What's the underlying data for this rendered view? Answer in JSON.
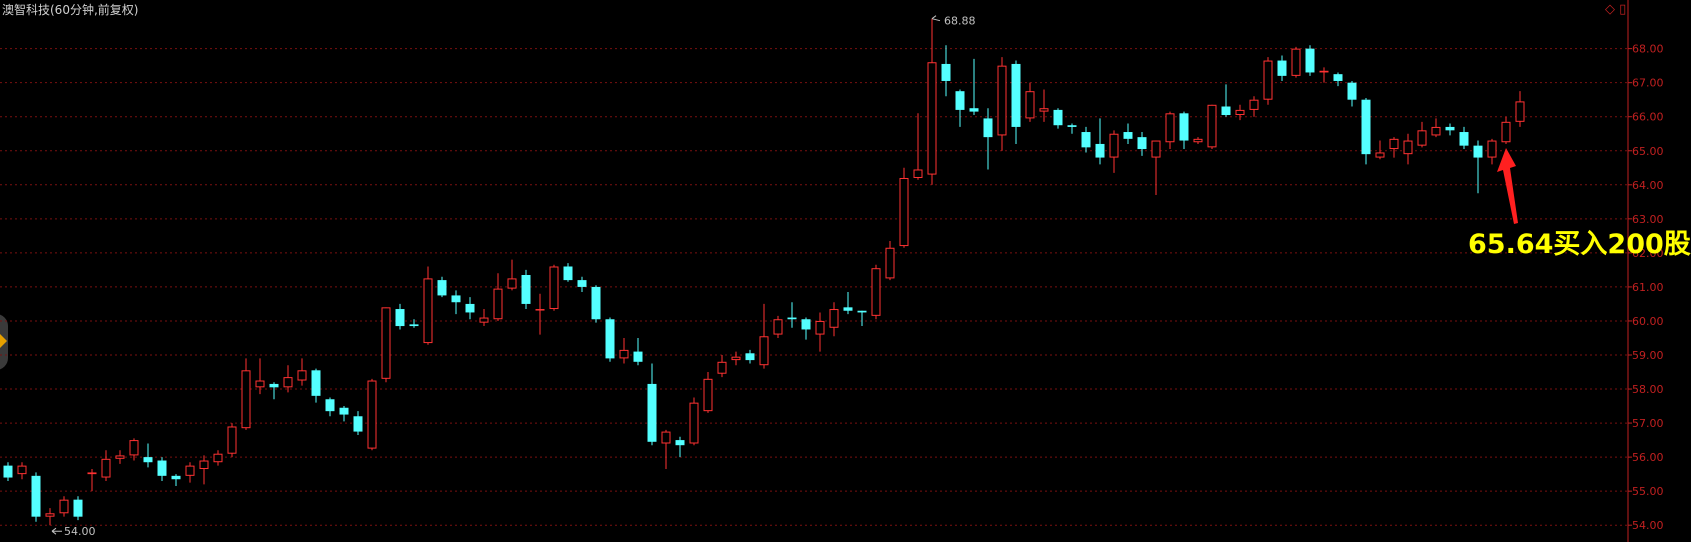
{
  "title": "澳智科技(60分钟,前复权)",
  "annotation": "65.64买入200股",
  "corner_icons": "◇ ▯",
  "colors": {
    "up": "#ff3232",
    "down": "#54ffff",
    "grid": "#7a1010",
    "axis_text": "#c02020",
    "arrow": "#ff2020",
    "annotation": "#ffff00"
  },
  "chart_data": {
    "type": "candlestick",
    "title": "澳智科技(60分钟,前复权)",
    "ylim": [
      53.8,
      68.9
    ],
    "y_ticks": [
      "54.00",
      "55.00",
      "56.00",
      "57.00",
      "58.00",
      "59.00",
      "60.00",
      "61.00",
      "62.00",
      "63.00",
      "64.00",
      "65.00",
      "66.00",
      "67.00",
      "68.00"
    ],
    "grid": true,
    "high_marker": "68.88",
    "low_marker": "54.00",
    "candles": [
      [
        55.75,
        55.4,
        55.85,
        55.3
      ],
      [
        55.5,
        55.75,
        55.85,
        55.35
      ],
      [
        55.45,
        54.25,
        55.55,
        54.1
      ],
      [
        54.25,
        54.35,
        54.5,
        54.0
      ],
      [
        54.35,
        54.75,
        54.85,
        54.25
      ],
      [
        54.75,
        54.25,
        54.85,
        54.15
      ],
      [
        55.5,
        55.55,
        55.65,
        55.0
      ],
      [
        55.4,
        55.95,
        56.2,
        55.3
      ],
      [
        55.95,
        56.05,
        56.2,
        55.8
      ],
      [
        56.05,
        56.5,
        56.55,
        55.9
      ],
      [
        56.0,
        55.85,
        56.4,
        55.7
      ],
      [
        55.9,
        55.45,
        56.0,
        55.3
      ],
      [
        55.45,
        55.35,
        55.5,
        55.15
      ],
      [
        55.45,
        55.75,
        55.85,
        55.25
      ],
      [
        55.65,
        55.9,
        56.05,
        55.2
      ],
      [
        55.85,
        56.1,
        56.2,
        55.75
      ],
      [
        56.1,
        56.9,
        57.0,
        56.0
      ],
      [
        56.85,
        58.55,
        58.9,
        56.8
      ],
      [
        58.05,
        58.25,
        58.9,
        57.85
      ],
      [
        58.15,
        58.05,
        58.2,
        57.7
      ],
      [
        58.05,
        58.35,
        58.7,
        57.9
      ],
      [
        58.25,
        58.55,
        58.9,
        58.1
      ],
      [
        58.55,
        57.8,
        58.6,
        57.6
      ],
      [
        57.7,
        57.35,
        57.75,
        57.2
      ],
      [
        57.45,
        57.25,
        57.5,
        57.05
      ],
      [
        57.2,
        56.75,
        57.35,
        56.65
      ],
      [
        56.25,
        58.25,
        58.3,
        56.2
      ],
      [
        58.3,
        60.4,
        60.4,
        58.2
      ],
      [
        60.35,
        59.85,
        60.5,
        59.75
      ],
      [
        59.9,
        59.85,
        60.05,
        59.8
      ],
      [
        59.35,
        61.25,
        61.6,
        59.3
      ],
      [
        61.2,
        60.75,
        61.3,
        60.7
      ],
      [
        60.75,
        60.55,
        60.9,
        60.2
      ],
      [
        60.5,
        60.25,
        60.7,
        60.05
      ],
      [
        59.95,
        60.1,
        60.35,
        59.85
      ],
      [
        60.05,
        60.95,
        61.4,
        60.0
      ],
      [
        60.95,
        61.25,
        61.8,
        60.9
      ],
      [
        61.35,
        60.5,
        61.5,
        60.35
      ],
      [
        60.35,
        60.35,
        60.8,
        59.6
      ],
      [
        60.35,
        61.6,
        61.65,
        60.3
      ],
      [
        61.6,
        61.2,
        61.7,
        61.15
      ],
      [
        61.2,
        61.0,
        61.3,
        60.85
      ],
      [
        61.0,
        60.05,
        61.05,
        59.95
      ],
      [
        60.05,
        58.9,
        60.1,
        58.8
      ],
      [
        58.9,
        59.15,
        59.5,
        58.75
      ],
      [
        59.1,
        58.8,
        59.5,
        58.7
      ],
      [
        58.15,
        56.45,
        58.75,
        56.35
      ],
      [
        56.4,
        56.75,
        56.8,
        55.65
      ],
      [
        56.5,
        56.35,
        56.6,
        56.0
      ],
      [
        56.4,
        57.6,
        57.75,
        56.35
      ],
      [
        57.35,
        58.3,
        58.5,
        57.3
      ],
      [
        58.45,
        58.8,
        59.0,
        58.35
      ],
      [
        58.85,
        58.95,
        59.1,
        58.7
      ],
      [
        59.05,
        58.85,
        59.15,
        58.75
      ],
      [
        58.7,
        59.55,
        60.5,
        58.6
      ],
      [
        59.6,
        60.05,
        60.15,
        59.5
      ],
      [
        60.1,
        60.05,
        60.55,
        59.8
      ],
      [
        60.05,
        59.75,
        60.1,
        59.45
      ],
      [
        59.6,
        60.0,
        60.25,
        59.1
      ],
      [
        59.8,
        60.35,
        60.55,
        59.55
      ],
      [
        60.4,
        60.3,
        60.85,
        60.2
      ],
      [
        60.3,
        60.25,
        60.3,
        59.85
      ],
      [
        60.15,
        61.55,
        61.65,
        60.05
      ],
      [
        61.25,
        62.15,
        62.35,
        61.2
      ],
      [
        62.2,
        64.2,
        64.5,
        62.15
      ],
      [
        64.2,
        64.45,
        66.1,
        64.15
      ],
      [
        64.3,
        67.6,
        68.88,
        64.0
      ],
      [
        67.55,
        67.05,
        68.1,
        66.6
      ],
      [
        66.75,
        66.2,
        66.8,
        65.7
      ],
      [
        66.25,
        66.15,
        67.7,
        66.05
      ],
      [
        65.95,
        65.4,
        66.25,
        64.45
      ],
      [
        65.45,
        67.5,
        67.75,
        65.0
      ],
      [
        67.55,
        65.7,
        67.65,
        65.2
      ],
      [
        65.95,
        66.75,
        67.0,
        65.85
      ],
      [
        66.15,
        66.25,
        66.8,
        65.85
      ],
      [
        66.2,
        65.75,
        66.25,
        65.65
      ],
      [
        65.75,
        65.7,
        65.8,
        65.5
      ],
      [
        65.55,
        65.1,
        65.7,
        64.95
      ],
      [
        65.2,
        64.8,
        65.95,
        64.6
      ],
      [
        64.8,
        65.5,
        65.6,
        64.35
      ],
      [
        65.55,
        65.35,
        65.8,
        65.2
      ],
      [
        65.4,
        65.05,
        65.55,
        64.85
      ],
      [
        64.8,
        65.3,
        65.3,
        63.7
      ],
      [
        65.25,
        66.1,
        66.15,
        65.05
      ],
      [
        66.1,
        65.3,
        66.15,
        65.05
      ],
      [
        65.25,
        65.35,
        65.4,
        65.2
      ],
      [
        65.1,
        66.35,
        66.35,
        65.05
      ],
      [
        66.3,
        66.05,
        66.95,
        66.0
      ],
      [
        66.05,
        66.2,
        66.35,
        65.9
      ],
      [
        66.2,
        66.5,
        66.6,
        66.0
      ],
      [
        66.5,
        67.65,
        67.75,
        66.35
      ],
      [
        67.65,
        67.2,
        67.8,
        67.05
      ],
      [
        67.2,
        68.0,
        68.05,
        67.15
      ],
      [
        68.0,
        67.3,
        68.1,
        67.2
      ],
      [
        67.3,
        67.35,
        67.45,
        67.0
      ],
      [
        67.25,
        67.05,
        67.3,
        66.9
      ],
      [
        67.0,
        66.5,
        67.05,
        66.3
      ],
      [
        66.5,
        64.9,
        66.55,
        64.6
      ],
      [
        64.8,
        64.95,
        65.3,
        64.75
      ],
      [
        65.05,
        65.35,
        65.4,
        64.8
      ],
      [
        64.9,
        65.3,
        65.5,
        64.6
      ],
      [
        65.15,
        65.6,
        65.85,
        65.1
      ],
      [
        65.45,
        65.7,
        65.95,
        65.4
      ],
      [
        65.7,
        65.6,
        65.8,
        65.45
      ],
      [
        65.55,
        65.15,
        65.7,
        65.05
      ],
      [
        65.15,
        64.8,
        65.3,
        63.75
      ],
      [
        64.8,
        65.3,
        65.35,
        64.6
      ],
      [
        65.25,
        65.85,
        66.0,
        65.2
      ],
      [
        65.85,
        66.45,
        66.75,
        65.7
      ]
    ]
  }
}
